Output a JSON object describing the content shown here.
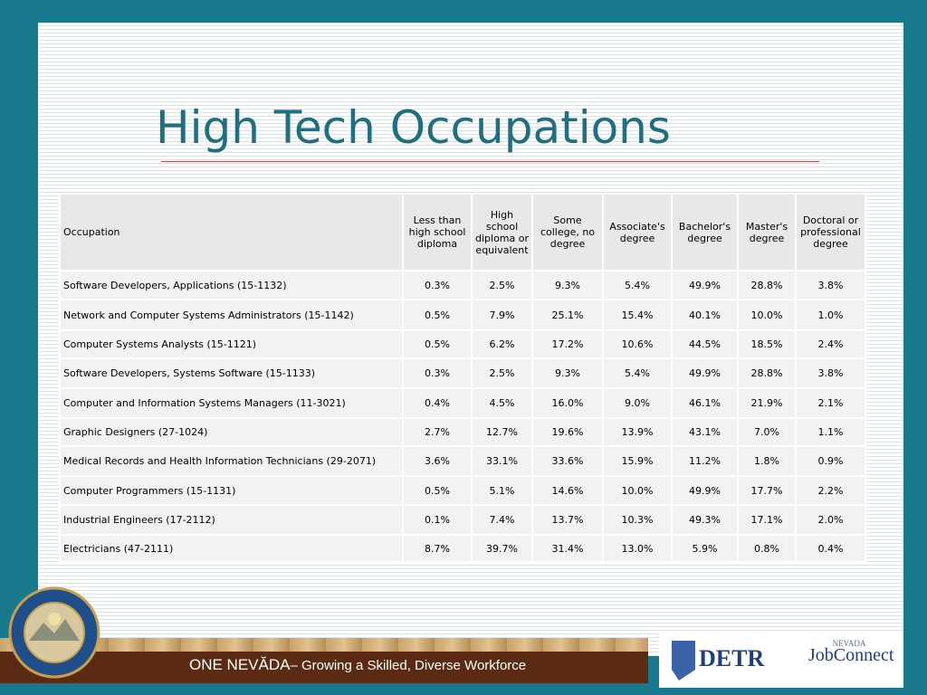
{
  "header": {
    "title": "High Tech Occupations"
  },
  "table": {
    "columns": [
      "Occupation",
      "Less than high school diploma",
      "High school diploma or equivalent",
      "Some college, no degree",
      "Associate's degree",
      "Bachelor's degree",
      "Master's degree",
      "Doctoral or professional degree"
    ],
    "rows": [
      [
        "Software Developers, Applications (15-1132)",
        "0.3%",
        "2.5%",
        "9.3%",
        "5.4%",
        "49.9%",
        "28.8%",
        "3.8%"
      ],
      [
        "Network and Computer Systems Administrators (15-1142)",
        "0.5%",
        "7.9%",
        "25.1%",
        "15.4%",
        "40.1%",
        "10.0%",
        "1.0%"
      ],
      [
        "Computer Systems Analysts (15-1121)",
        "0.5%",
        "6.2%",
        "17.2%",
        "10.6%",
        "44.5%",
        "18.5%",
        "2.4%"
      ],
      [
        "Software Developers, Systems Software (15-1133)",
        "0.3%",
        "2.5%",
        "9.3%",
        "5.4%",
        "49.9%",
        "28.8%",
        "3.8%"
      ],
      [
        "Computer and Information Systems Managers (11-3021)",
        "0.4%",
        "4.5%",
        "16.0%",
        "9.0%",
        "46.1%",
        "21.9%",
        "2.1%"
      ],
      [
        "Graphic Designers (27-1024)",
        "2.7%",
        "12.7%",
        "19.6%",
        "13.9%",
        "43.1%",
        "7.0%",
        "1.1%"
      ],
      [
        "Medical Records and Health Information Technicians (29-2071)",
        "3.6%",
        "33.1%",
        "33.6%",
        "15.9%",
        "11.2%",
        "1.8%",
        "0.9%"
      ],
      [
        "Computer Programmers (15-1131)",
        "0.5%",
        "5.1%",
        "14.6%",
        "10.0%",
        "49.9%",
        "17.7%",
        "2.2%"
      ],
      [
        "Industrial Engineers (17-2112)",
        "0.1%",
        "7.4%",
        "13.7%",
        "10.3%",
        "49.3%",
        "17.1%",
        "2.0%"
      ],
      [
        "Electricians (47-2111)",
        "8.7%",
        "39.7%",
        "31.4%",
        "13.0%",
        "5.9%",
        "0.8%",
        "0.4%"
      ]
    ]
  },
  "footer": {
    "brand": "ONE NEVĂDA",
    "tagline": "– Growing a Skilled, Diverse Workforce",
    "logo_detr": "DETR",
    "logo_nevada": "NEVADA",
    "logo_jobconnect": "JobConnect"
  }
}
